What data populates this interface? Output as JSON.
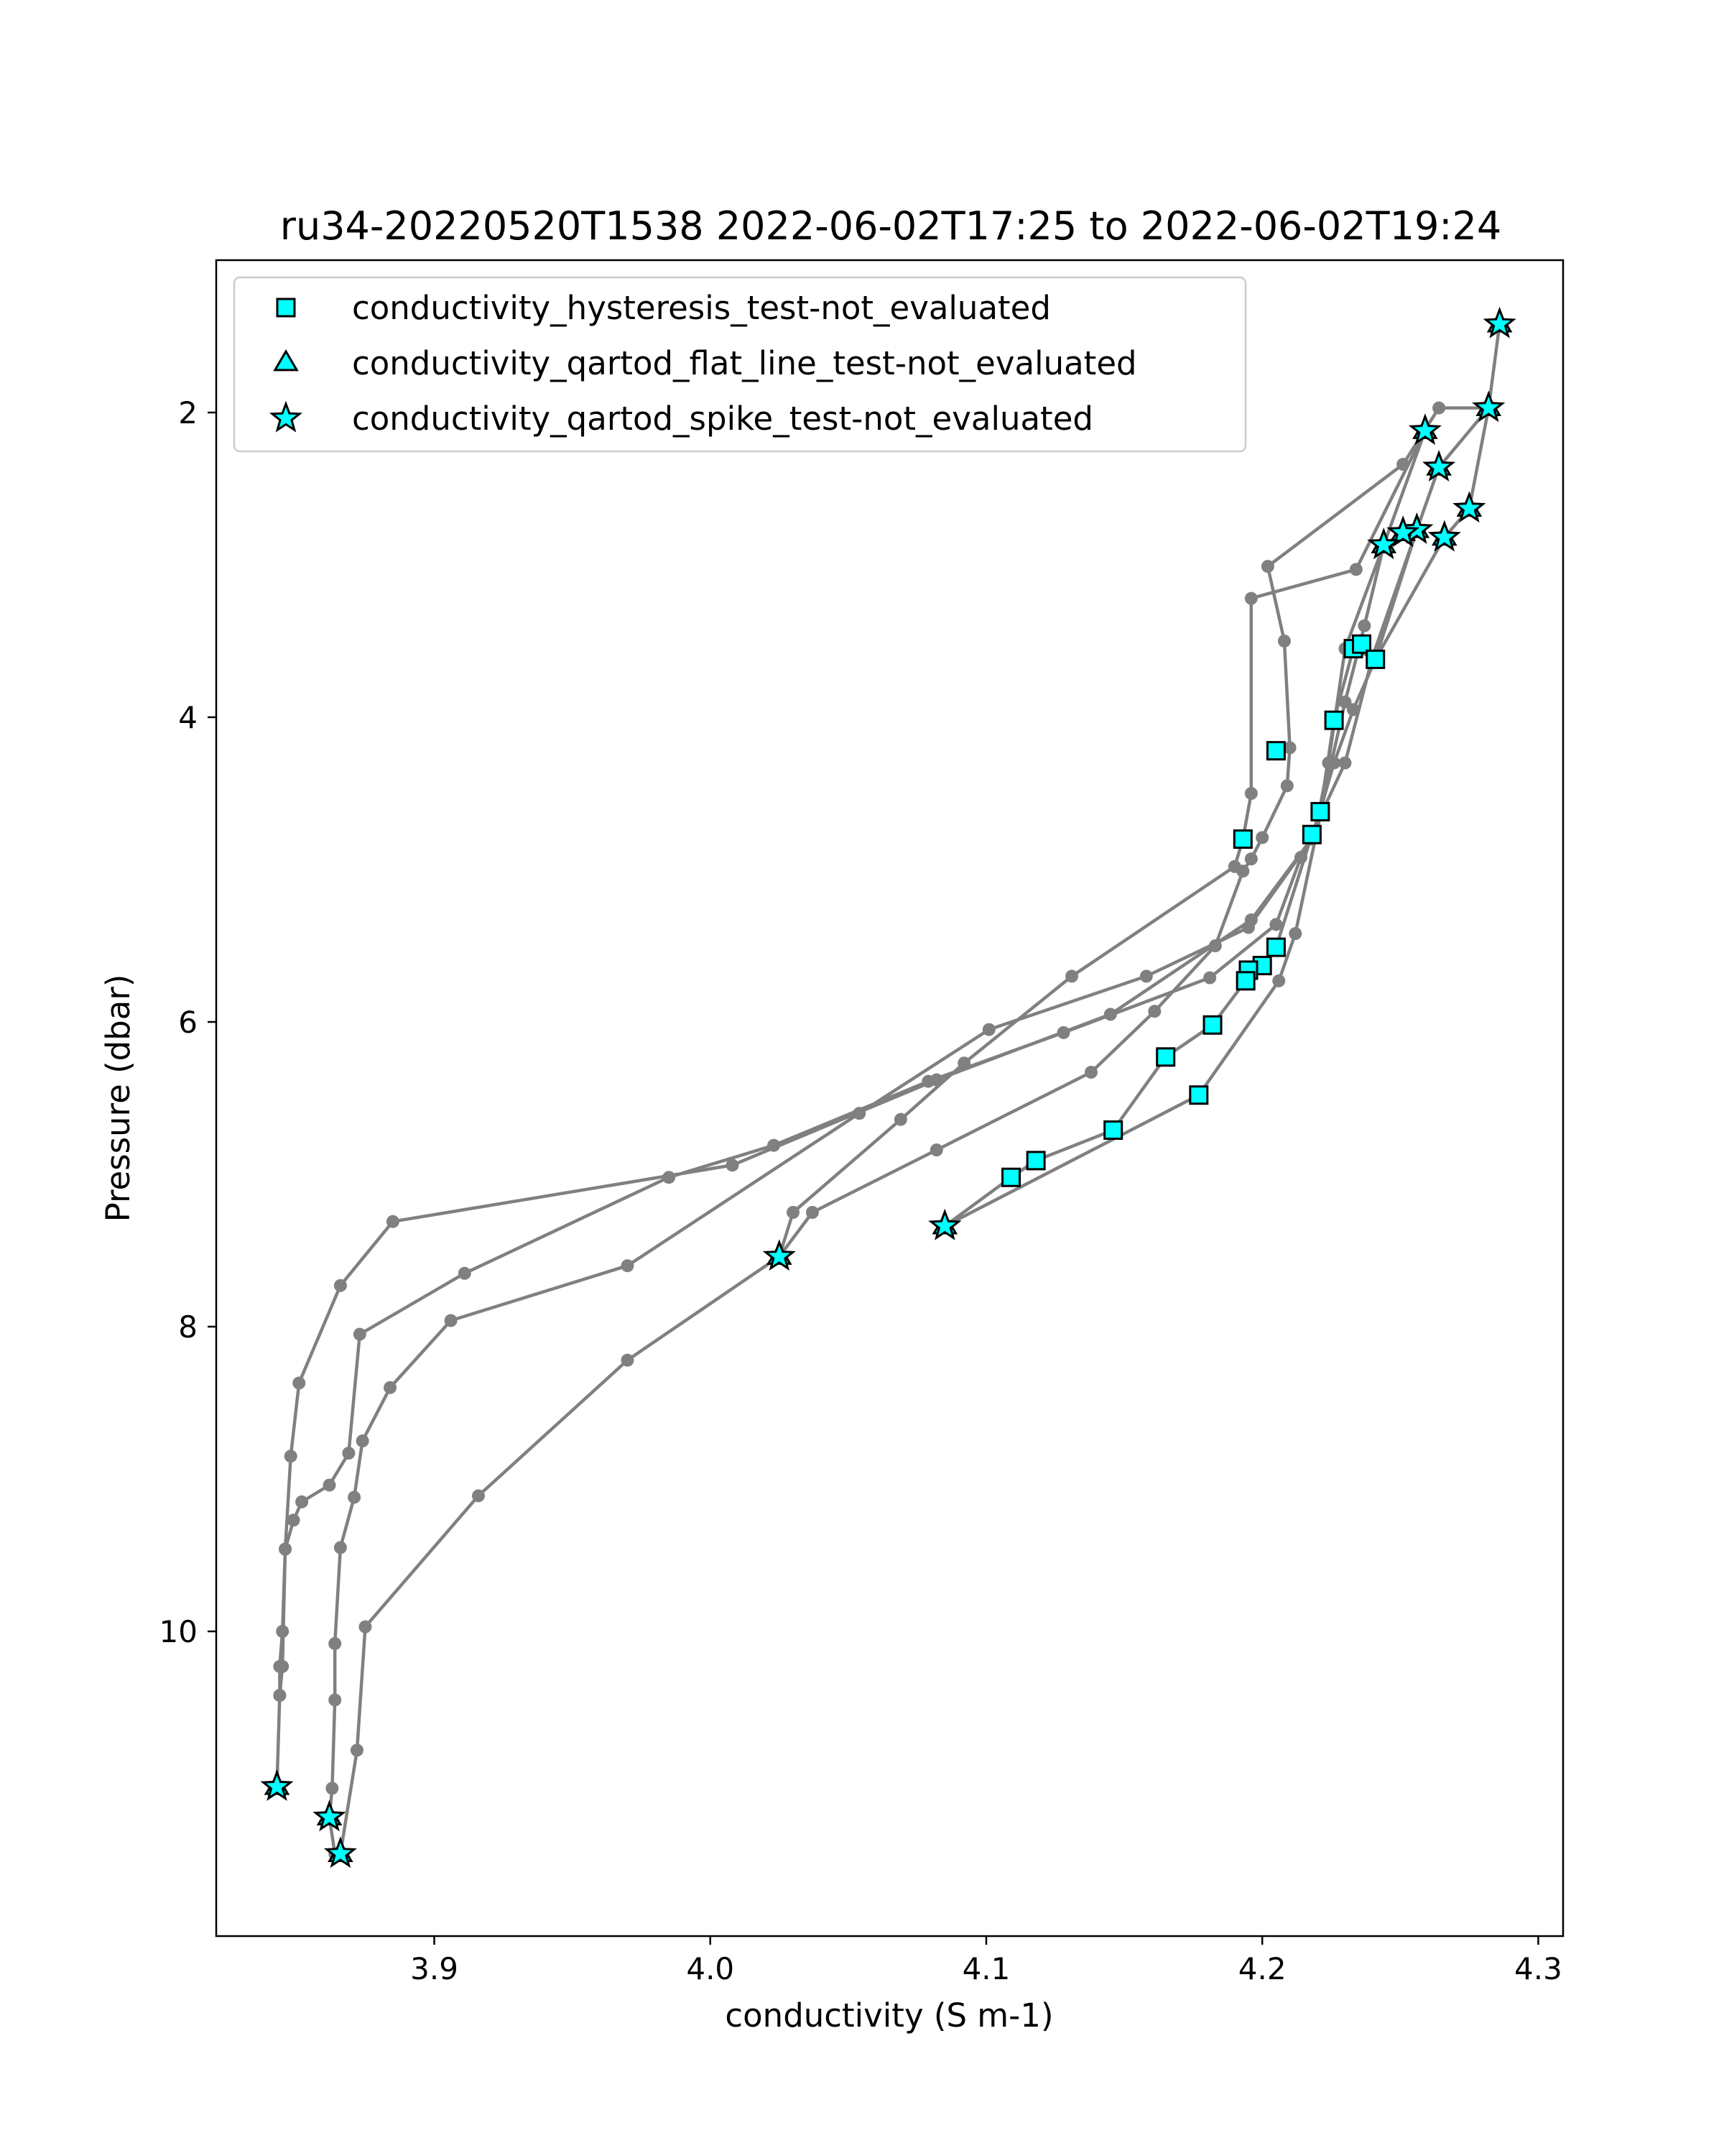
{
  "chart_data": {
    "type": "scatter",
    "title": "ru34-20220520T1538 2022-06-02T17:25 to 2022-06-02T19:24",
    "xlabel": "conductivity (S m-1)",
    "ylabel": "Pressure (dbar)",
    "xlim": [
      3.821,
      4.309
    ],
    "ylim": [
      12.0,
      1.0
    ],
    "y_inverted": true,
    "xticks": [
      3.9,
      4.0,
      4.1,
      4.2,
      4.3
    ],
    "xtick_labels": [
      "3.9",
      "4.0",
      "4.1",
      "4.2",
      "4.3"
    ],
    "yticks": [
      2,
      4,
      6,
      8,
      10
    ],
    "ytick_labels": [
      "2",
      "4",
      "6",
      "8",
      "10"
    ],
    "grid": false,
    "legend_position": "upper-left",
    "colors": {
      "profile": "#808080",
      "marker_fill": "#00ffff",
      "marker_edge": "#000000"
    },
    "profile_line": [
      [
        4.286,
        1.42
      ],
      [
        4.282,
        1.97
      ],
      [
        4.275,
        2.63
      ],
      [
        4.266,
        2.82
      ],
      [
        4.241,
        3.62
      ],
      [
        4.233,
        3.55
      ],
      [
        4.226,
        4.02
      ],
      [
        4.221,
        4.62
      ],
      [
        4.218,
        4.77
      ],
      [
        4.205,
        5.51
      ],
      [
        4.2,
        5.63
      ],
      [
        4.195,
        5.66
      ],
      [
        4.194,
        5.73
      ],
      [
        4.182,
        6.02
      ],
      [
        4.165,
        6.23
      ],
      [
        4.146,
        6.71
      ],
      [
        4.118,
        6.91
      ],
      [
        4.109,
        7.02
      ],
      [
        4.085,
        7.34
      ],
      [
        4.085,
        7.34
      ],
      [
        4.177,
        6.48
      ],
      [
        4.206,
        5.73
      ],
      [
        4.212,
        5.42
      ],
      [
        4.225,
        4.3
      ],
      [
        4.23,
        3.9
      ],
      [
        4.237,
        3.4
      ],
      [
        4.244,
        2.87
      ],
      [
        4.251,
        2.79
      ],
      [
        4.256,
        2.77
      ],
      [
        4.264,
        2.36
      ],
      [
        4.282,
        1.97
      ],
      [
        4.282,
        1.97
      ],
      [
        4.264,
        1.97
      ],
      [
        4.251,
        2.34
      ],
      [
        4.202,
        3.01
      ],
      [
        4.208,
        3.5
      ],
      [
        4.21,
        4.2
      ],
      [
        4.209,
        4.45
      ],
      [
        4.2,
        4.79
      ],
      [
        4.196,
        4.93
      ],
      [
        4.193,
        5.01
      ],
      [
        4.183,
        5.5
      ],
      [
        4.161,
        5.93
      ],
      [
        4.138,
        6.33
      ],
      [
        4.082,
        6.84
      ],
      [
        4.037,
        7.25
      ],
      [
        4.025,
        7.54
      ],
      [
        4.025,
        7.54
      ],
      [
        4.03,
        7.25
      ],
      [
        4.069,
        6.64
      ],
      [
        4.092,
        6.27
      ],
      [
        4.131,
        5.7
      ],
      [
        4.19,
        4.98
      ],
      [
        4.193,
        4.8
      ],
      [
        4.196,
        4.5
      ],
      [
        4.196,
        3.22
      ],
      [
        4.234,
        3.03
      ],
      [
        4.259,
        2.12
      ],
      [
        4.259,
        2.12
      ],
      [
        4.244,
        2.87
      ],
      [
        4.23,
        3.55
      ],
      [
        4.224,
        4.3
      ],
      [
        4.219,
        4.77
      ],
      [
        4.196,
        5.33
      ],
      [
        4.145,
        5.95
      ],
      [
        4.082,
        6.38
      ],
      [
        4.008,
        6.94
      ],
      [
        3.885,
        7.31
      ],
      [
        3.866,
        7.73
      ],
      [
        3.851,
        8.37
      ],
      [
        3.848,
        8.85
      ],
      [
        3.846,
        9.46
      ],
      [
        3.845,
        10.0
      ],
      [
        3.844,
        10.23
      ],
      [
        3.844,
        10.42
      ],
      [
        3.843,
        11.02
      ],
      [
        3.843,
        11.02
      ],
      [
        3.844,
        10.42
      ],
      [
        3.845,
        10.23
      ],
      [
        3.846,
        9.46
      ],
      [
        3.849,
        9.27
      ],
      [
        3.852,
        9.15
      ],
      [
        3.862,
        9.04
      ],
      [
        3.869,
        8.83
      ],
      [
        3.873,
        8.05
      ],
      [
        3.911,
        7.65
      ],
      [
        3.985,
        7.02
      ],
      [
        4.023,
        6.81
      ],
      [
        4.079,
        6.39
      ],
      [
        4.128,
        6.07
      ],
      [
        4.181,
        5.71
      ],
      [
        4.205,
        5.36
      ],
      [
        4.214,
        4.92
      ],
      [
        4.23,
        4.3
      ],
      [
        4.24,
        3.6
      ],
      [
        4.256,
        2.77
      ],
      [
        4.256,
        2.77
      ],
      [
        4.241,
        3.62
      ],
      [
        4.233,
        3.95
      ],
      [
        4.226,
        4.3
      ],
      [
        4.218,
        4.8
      ],
      [
        4.195,
        5.38
      ],
      [
        4.158,
        5.7
      ],
      [
        4.101,
        6.05
      ],
      [
        4.054,
        6.6
      ],
      [
        3.97,
        7.6
      ],
      [
        3.906,
        7.96
      ],
      [
        3.884,
        8.4
      ],
      [
        3.874,
        8.75
      ],
      [
        3.871,
        9.12
      ],
      [
        3.866,
        9.45
      ],
      [
        3.864,
        10.08
      ],
      [
        3.864,
        10.45
      ],
      [
        3.863,
        11.03
      ],
      [
        3.862,
        11.22
      ],
      [
        3.862,
        11.22
      ],
      [
        3.864,
        11.46
      ],
      [
        3.866,
        11.46
      ],
      [
        3.872,
        10.78
      ],
      [
        3.875,
        9.97
      ],
      [
        3.916,
        9.11
      ],
      [
        3.97,
        8.22
      ],
      [
        4.025,
        7.54
      ]
    ],
    "series": [
      {
        "name": "conductivity_hysteresis_test-not_evaluated",
        "marker": "square",
        "points": [
          [
            4.233,
            3.55
          ],
          [
            4.236,
            3.52
          ],
          [
            4.241,
            3.62
          ],
          [
            4.226,
            4.02
          ],
          [
            4.205,
            4.22
          ],
          [
            4.221,
            4.62
          ],
          [
            4.218,
            4.77
          ],
          [
            4.193,
            4.8
          ],
          [
            4.205,
            5.51
          ],
          [
            4.2,
            5.63
          ],
          [
            4.195,
            5.66
          ],
          [
            4.194,
            5.73
          ],
          [
            4.182,
            6.02
          ],
          [
            4.165,
            6.23
          ],
          [
            4.177,
            6.48
          ],
          [
            4.146,
            6.71
          ],
          [
            4.118,
            6.91
          ],
          [
            4.109,
            7.02
          ]
        ]
      },
      {
        "name": "conductivity_qartod_flat_line_test-not_evaluated",
        "marker": "triangle",
        "points": [
          [
            4.286,
            1.42
          ],
          [
            4.282,
            1.97
          ],
          [
            4.259,
            2.12
          ],
          [
            4.264,
            2.36
          ],
          [
            4.275,
            2.63
          ],
          [
            4.256,
            2.77
          ],
          [
            4.251,
            2.79
          ],
          [
            4.266,
            2.82
          ],
          [
            4.244,
            2.87
          ],
          [
            4.085,
            7.34
          ],
          [
            4.025,
            7.54
          ],
          [
            3.843,
            11.02
          ],
          [
            3.862,
            11.22
          ],
          [
            3.866,
            11.46
          ]
        ]
      },
      {
        "name": "conductivity_qartod_spike_test-not_evaluated",
        "marker": "star",
        "points": [
          [
            4.286,
            1.42
          ],
          [
            4.282,
            1.97
          ],
          [
            4.259,
            2.12
          ],
          [
            4.264,
            2.36
          ],
          [
            4.275,
            2.63
          ],
          [
            4.256,
            2.77
          ],
          [
            4.251,
            2.79
          ],
          [
            4.266,
            2.82
          ],
          [
            4.244,
            2.87
          ],
          [
            4.085,
            7.34
          ],
          [
            4.025,
            7.54
          ],
          [
            3.843,
            11.02
          ],
          [
            3.862,
            11.22
          ],
          [
            3.866,
            11.46
          ]
        ]
      }
    ]
  }
}
